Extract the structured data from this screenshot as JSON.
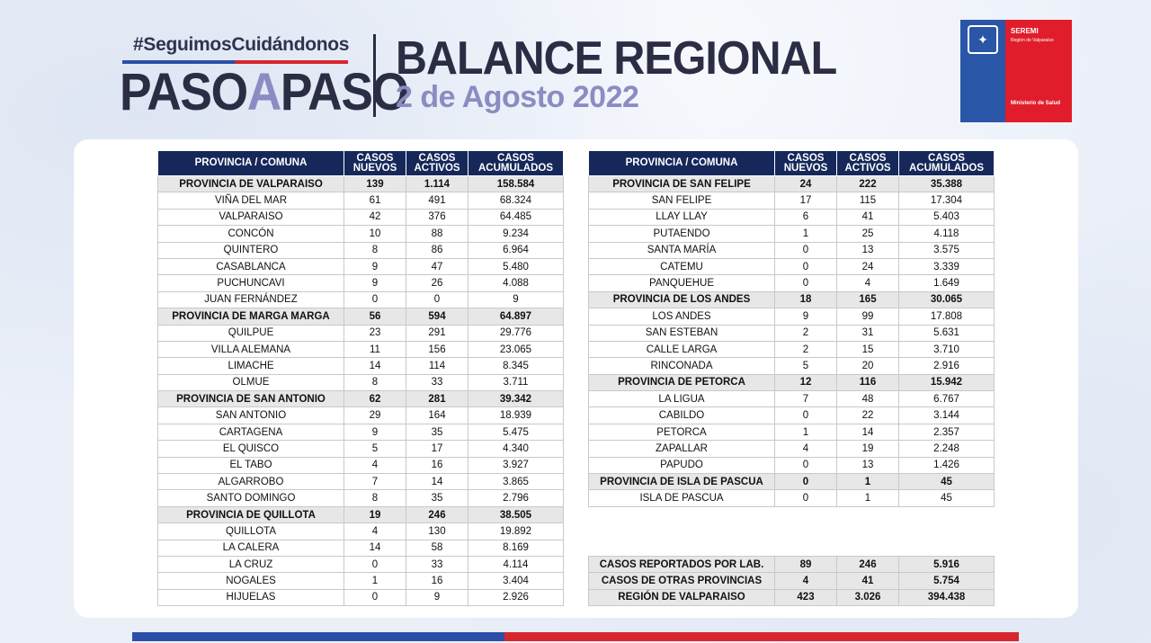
{
  "header": {
    "hashtag": "#SeguimosCuidándonos",
    "logo_part1": "PASO",
    "logo_part2": "A",
    "logo_part3": "PASO",
    "title": "BALANCE REGIONAL",
    "date": "2 de Agosto 2022"
  },
  "brand": {
    "seremi": "SEREMI",
    "region": "Región de Valparaíso",
    "ministry": "Ministerio de Salud",
    "blue": "#2a56a7",
    "red": "#e11d2b",
    "navy": "#16285a"
  },
  "columns": {
    "c1": "PROVINCIA / COMUNA",
    "c2a": "CASOS",
    "c2b": "NUEVOS",
    "c3a": "CASOS",
    "c3b": "ACTIVOS",
    "c4a": "CASOS",
    "c4b": "ACUMULADOS"
  },
  "left_rows": [
    {
      "name": "PROVINCIA DE VALPARAISO",
      "nuevos": "139",
      "activos": "1.114",
      "acumulados": "158.584",
      "province": true
    },
    {
      "name": "VIÑA DEL MAR",
      "nuevos": "61",
      "activos": "491",
      "acumulados": "68.324"
    },
    {
      "name": "VALPARAISO",
      "nuevos": "42",
      "activos": "376",
      "acumulados": "64.485"
    },
    {
      "name": "CONCÓN",
      "nuevos": "10",
      "activos": "88",
      "acumulados": "9.234"
    },
    {
      "name": "QUINTERO",
      "nuevos": "8",
      "activos": "86",
      "acumulados": "6.964"
    },
    {
      "name": "CASABLANCA",
      "nuevos": "9",
      "activos": "47",
      "acumulados": "5.480"
    },
    {
      "name": "PUCHUNCAVI",
      "nuevos": "9",
      "activos": "26",
      "acumulados": "4.088"
    },
    {
      "name": "JUAN FERNÁNDEZ",
      "nuevos": "0",
      "activos": "0",
      "acumulados": "9"
    },
    {
      "name": "PROVINCIA DE MARGA MARGA",
      "nuevos": "56",
      "activos": "594",
      "acumulados": "64.897",
      "province": true
    },
    {
      "name": "QUILPUE",
      "nuevos": "23",
      "activos": "291",
      "acumulados": "29.776"
    },
    {
      "name": "VILLA ALEMANA",
      "nuevos": "11",
      "activos": "156",
      "acumulados": "23.065"
    },
    {
      "name": "LIMACHE",
      "nuevos": "14",
      "activos": "114",
      "acumulados": "8.345"
    },
    {
      "name": "OLMUE",
      "nuevos": "8",
      "activos": "33",
      "acumulados": "3.711"
    },
    {
      "name": "PROVINCIA DE SAN ANTONIO",
      "nuevos": "62",
      "activos": "281",
      "acumulados": "39.342",
      "province": true
    },
    {
      "name": "SAN ANTONIO",
      "nuevos": "29",
      "activos": "164",
      "acumulados": "18.939"
    },
    {
      "name": "CARTAGENA",
      "nuevos": "9",
      "activos": "35",
      "acumulados": "5.475"
    },
    {
      "name": "EL QUISCO",
      "nuevos": "5",
      "activos": "17",
      "acumulados": "4.340"
    },
    {
      "name": "EL TABO",
      "nuevos": "4",
      "activos": "16",
      "acumulados": "3.927"
    },
    {
      "name": "ALGARROBO",
      "nuevos": "7",
      "activos": "14",
      "acumulados": "3.865"
    },
    {
      "name": "SANTO DOMINGO",
      "nuevos": "8",
      "activos": "35",
      "acumulados": "2.796"
    },
    {
      "name": "PROVINCIA DE QUILLOTA",
      "nuevos": "19",
      "activos": "246",
      "acumulados": "38.505",
      "province": true
    },
    {
      "name": "QUILLOTA",
      "nuevos": "4",
      "activos": "130",
      "acumulados": "19.892"
    },
    {
      "name": "LA CALERA",
      "nuevos": "14",
      "activos": "58",
      "acumulados": "8.169"
    },
    {
      "name": "LA CRUZ",
      "nuevos": "0",
      "activos": "33",
      "acumulados": "4.114"
    },
    {
      "name": "NOGALES",
      "nuevos": "1",
      "activos": "16",
      "acumulados": "3.404"
    },
    {
      "name": "HIJUELAS",
      "nuevos": "0",
      "activos": "9",
      "acumulados": "2.926"
    }
  ],
  "right_rows": [
    {
      "name": "PROVINCIA DE SAN FELIPE",
      "nuevos": "24",
      "activos": "222",
      "acumulados": "35.388",
      "province": true
    },
    {
      "name": "SAN FELIPE",
      "nuevos": "17",
      "activos": "115",
      "acumulados": "17.304"
    },
    {
      "name": "LLAY LLAY",
      "nuevos": "6",
      "activos": "41",
      "acumulados": "5.403"
    },
    {
      "name": "PUTAENDO",
      "nuevos": "1",
      "activos": "25",
      "acumulados": "4.118"
    },
    {
      "name": "SANTA MARÍA",
      "nuevos": "0",
      "activos": "13",
      "acumulados": "3.575"
    },
    {
      "name": "CATEMU",
      "nuevos": "0",
      "activos": "24",
      "acumulados": "3.339"
    },
    {
      "name": "PANQUEHUE",
      "nuevos": "0",
      "activos": "4",
      "acumulados": "1.649"
    },
    {
      "name": "PROVINCIA DE LOS ANDES",
      "nuevos": "18",
      "activos": "165",
      "acumulados": "30.065",
      "province": true
    },
    {
      "name": "LOS ANDES",
      "nuevos": "9",
      "activos": "99",
      "acumulados": "17.808"
    },
    {
      "name": "SAN ESTEBAN",
      "nuevos": "2",
      "activos": "31",
      "acumulados": "5.631"
    },
    {
      "name": "CALLE LARGA",
      "nuevos": "2",
      "activos": "15",
      "acumulados": "3.710"
    },
    {
      "name": "RINCONADA",
      "nuevos": "5",
      "activos": "20",
      "acumulados": "2.916"
    },
    {
      "name": "PROVINCIA DE PETORCA",
      "nuevos": "12",
      "activos": "116",
      "acumulados": "15.942",
      "province": true
    },
    {
      "name": "LA LIGUA",
      "nuevos": "7",
      "activos": "48",
      "acumulados": "6.767"
    },
    {
      "name": "CABILDO",
      "nuevos": "0",
      "activos": "22",
      "acumulados": "3.144"
    },
    {
      "name": "PETORCA",
      "nuevos": "1",
      "activos": "14",
      "acumulados": "2.357"
    },
    {
      "name": "ZAPALLAR",
      "nuevos": "4",
      "activos": "19",
      "acumulados": "2.248"
    },
    {
      "name": "PAPUDO",
      "nuevos": "0",
      "activos": "13",
      "acumulados": "1.426"
    },
    {
      "name": "PROVINCIA DE ISLA DE PASCUA",
      "nuevos": "0",
      "activos": "1",
      "acumulados": "45",
      "province": true
    },
    {
      "name": "ISLA DE PASCUA",
      "nuevos": "0",
      "activos": "1",
      "acumulados": "45"
    }
  ],
  "totals": [
    {
      "name": "CASOS REPORTADOS POR LAB.",
      "nuevos": "89",
      "activos": "246",
      "acumulados": "5.916"
    },
    {
      "name": "CASOS DE OTRAS PROVINCIAS",
      "nuevos": "4",
      "activos": "41",
      "acumulados": "5.754"
    },
    {
      "name": "REGIÓN DE VALPARAISO",
      "nuevos": "423",
      "activos": "3.026",
      "acumulados": "394.438"
    }
  ]
}
